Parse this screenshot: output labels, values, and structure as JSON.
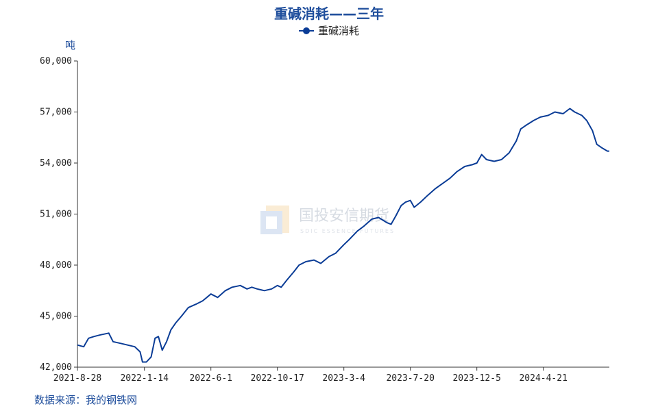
{
  "chart_data": {
    "type": "line",
    "title": "重碱消耗——三年",
    "ylabel": "吨",
    "ylim": [
      42000,
      60000
    ],
    "yticks": [
      42000,
      45000,
      48000,
      51000,
      54000,
      57000,
      60000
    ],
    "ytick_labels": [
      "42,000",
      "45,000",
      "48,000",
      "51,000",
      "54,000",
      "57,000",
      "60,000"
    ],
    "xlim": [
      "2021-08-28",
      "2024-09-05"
    ],
    "xticks": [
      "2021-8-28",
      "2022-1-14",
      "2022-6-1",
      "2022-10-17",
      "2023-3-4",
      "2023-7-20",
      "2023-12-5",
      "2024-4-21"
    ],
    "legend_position": "top-center",
    "grid": false,
    "series": [
      {
        "name": "重碱消耗",
        "color": "#0a3c96",
        "x": [
          "2021-08-28",
          "2021-09-10",
          "2021-09-20",
          "2021-10-01",
          "2021-10-15",
          "2021-11-01",
          "2021-11-10",
          "2021-11-25",
          "2021-12-10",
          "2021-12-25",
          "2022-01-05",
          "2022-01-10",
          "2022-01-18",
          "2022-01-28",
          "2022-02-05",
          "2022-02-12",
          "2022-02-20",
          "2022-03-01",
          "2022-03-10",
          "2022-03-20",
          "2022-04-01",
          "2022-04-15",
          "2022-05-01",
          "2022-05-15",
          "2022-06-01",
          "2022-06-15",
          "2022-07-01",
          "2022-07-15",
          "2022-08-01",
          "2022-08-15",
          "2022-08-25",
          "2022-09-05",
          "2022-09-20",
          "2022-10-05",
          "2022-10-17",
          "2022-10-25",
          "2022-11-05",
          "2022-11-20",
          "2022-12-01",
          "2022-12-15",
          "2023-01-01",
          "2023-01-15",
          "2023-02-01",
          "2023-02-15",
          "2023-03-04",
          "2023-03-15",
          "2023-04-01",
          "2023-04-15",
          "2023-05-01",
          "2023-05-15",
          "2023-06-01",
          "2023-06-10",
          "2023-06-20",
          "2023-07-01",
          "2023-07-10",
          "2023-07-20",
          "2023-07-28",
          "2023-08-10",
          "2023-08-25",
          "2023-09-10",
          "2023-09-25",
          "2023-10-10",
          "2023-10-25",
          "2023-11-10",
          "2023-11-25",
          "2023-12-05",
          "2023-12-15",
          "2023-12-25",
          "2024-01-10",
          "2024-01-25",
          "2024-02-10",
          "2024-02-25",
          "2024-03-05",
          "2024-03-15",
          "2024-04-01",
          "2024-04-15",
          "2024-05-01",
          "2024-05-15",
          "2024-06-01",
          "2024-06-15",
          "2024-06-25",
          "2024-07-10",
          "2024-07-20",
          "2024-08-01",
          "2024-08-10",
          "2024-08-20",
          "2024-09-01",
          "2024-09-05"
        ],
        "values": [
          43300,
          43200,
          43700,
          43800,
          43900,
          44000,
          43500,
          43400,
          43300,
          43200,
          42900,
          42300,
          42300,
          42600,
          43700,
          43800,
          43000,
          43500,
          44200,
          44600,
          45000,
          45500,
          45700,
          45900,
          46300,
          46100,
          46500,
          46700,
          46800,
          46600,
          46700,
          46600,
          46500,
          46600,
          46800,
          46700,
          47100,
          47600,
          48000,
          48200,
          48300,
          48100,
          48500,
          48700,
          49200,
          49500,
          50000,
          50300,
          50700,
          50800,
          50500,
          50400,
          50900,
          51500,
          51700,
          51800,
          51400,
          51700,
          52100,
          52500,
          52800,
          53100,
          53500,
          53800,
          53900,
          54000,
          54500,
          54200,
          54100,
          54200,
          54600,
          55300,
          56000,
          56200,
          56500,
          56700,
          56800,
          57000,
          56900,
          57200,
          57000,
          56800,
          56500,
          55900,
          55100,
          54900,
          54700,
          54700
        ]
      }
    ]
  },
  "watermark": {
    "name": "国投安信期货",
    "subtitle": "SDIC ESSENCE FUTURES"
  },
  "source_text": "数据来源：我的钢铁网"
}
